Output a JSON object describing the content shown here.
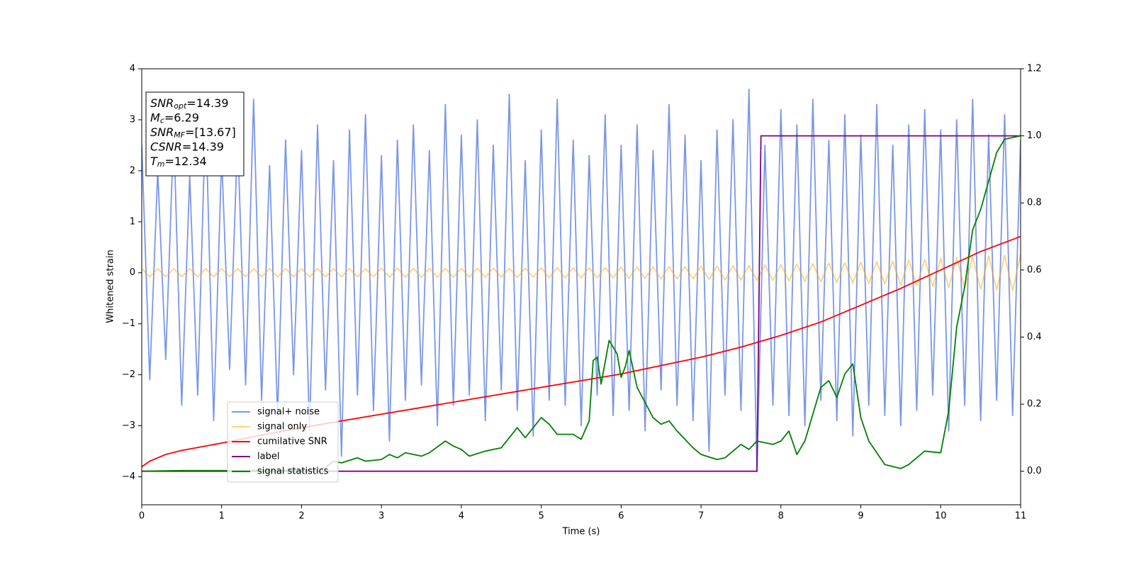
{
  "chart_data": {
    "type": "line",
    "xlabel": "Time (s)",
    "ylabel": "Whitened strain",
    "xlim": [
      0,
      11
    ],
    "ylim": [
      -4.55,
      4
    ],
    "y2lim": [
      -0.1,
      1.2
    ],
    "xticks": [
      0,
      1,
      2,
      3,
      4,
      5,
      6,
      7,
      8,
      9,
      10,
      11
    ],
    "yticks": [
      {
        "value": -4,
        "label": "−4"
      },
      {
        "value": -3,
        "label": "−3"
      },
      {
        "value": -2,
        "label": "−2"
      },
      {
        "value": -1,
        "label": "−1"
      },
      0,
      1,
      2,
      3,
      4
    ],
    "y2ticks": [
      {
        "value": 0,
        "label": "0.0"
      },
      {
        "value": 0.2,
        "label": "0.2"
      },
      {
        "value": 0.4,
        "label": "0.4"
      },
      {
        "value": 0.6,
        "label": "0.6"
      },
      {
        "value": 0.8,
        "label": "0.8"
      },
      {
        "value": 1.0,
        "label": "1.0"
      },
      {
        "value": 1.2,
        "label": "1.2"
      }
    ],
    "legend": "lower left",
    "annotations": [
      {
        "main": "SNR",
        "sub": "opt",
        "rest": "=14.39"
      },
      {
        "main": "M",
        "sub": "c",
        "rest": "=6.29"
      },
      {
        "main": "SNR",
        "sub": "MF",
        "rest": "=[13.67]"
      },
      {
        "main": "CSNR",
        "rest": "=14.39"
      },
      {
        "main": "T",
        "sub": "m",
        "rest": "=12.34"
      }
    ],
    "series": [
      {
        "name": "signal+ noise",
        "color": "#4169e1",
        "opacity": 0.7,
        "x": [
          0,
          0.1,
          0.2,
          0.3,
          0.4,
          0.5,
          0.6,
          0.7,
          0.8,
          0.9,
          1,
          1.1,
          1.2,
          1.3,
          1.4,
          1.5,
          1.6,
          1.7,
          1.8,
          1.9,
          2,
          2.1,
          2.2,
          2.3,
          2.4,
          2.5,
          2.6,
          2.7,
          2.8,
          2.9,
          3,
          3.1,
          3.2,
          3.3,
          3.4,
          3.5,
          3.6,
          3.7,
          3.8,
          3.9,
          4,
          4.1,
          4.2,
          4.3,
          4.4,
          4.5,
          4.6,
          4.7,
          4.8,
          4.9,
          5,
          5.1,
          5.2,
          5.3,
          5.4,
          5.5,
          5.6,
          5.7,
          5.8,
          5.9,
          6,
          6.1,
          6.2,
          6.3,
          6.4,
          6.5,
          6.6,
          6.7,
          6.8,
          6.9,
          7,
          7.1,
          7.2,
          7.3,
          7.4,
          7.5,
          7.6,
          7.7,
          7.8,
          7.9,
          8,
          8.1,
          8.2,
          8.3,
          8.4,
          8.5,
          8.6,
          8.7,
          8.8,
          8.9,
          9,
          9.1,
          9.2,
          9.3,
          9.4,
          9.5,
          9.6,
          9.7,
          9.8,
          9.9,
          10,
          10.1,
          10.2,
          10.3,
          10.4,
          10.5,
          10.6,
          10.7,
          10.8,
          10.9,
          11
        ],
        "values": [
          2.5,
          -2.1,
          2.0,
          -1.7,
          2.8,
          -2.6,
          1.9,
          -2.4,
          3.2,
          -2.9,
          2.3,
          -1.9,
          2.7,
          -2.2,
          3.4,
          -2.5,
          2.1,
          -2.8,
          2.6,
          -2.0,
          2.4,
          -3.1,
          2.9,
          -2.3,
          2.2,
          -3.6,
          2.8,
          -2.4,
          3.1,
          -2.7,
          2.3,
          -3.3,
          2.6,
          -2.5,
          2.9,
          -2.2,
          2.4,
          -3.0,
          3.3,
          -2.6,
          2.7,
          -2.4,
          3.0,
          -2.9,
          2.5,
          -2.3,
          3.5,
          -2.7,
          2.2,
          -3.2,
          2.8,
          -2.5,
          3.4,
          -2.6,
          2.6,
          -3.0,
          2.3,
          -2.4,
          3.1,
          -2.8,
          2.5,
          -2.7,
          2.9,
          -3.1,
          2.4,
          -2.3,
          3.3,
          -2.6,
          2.7,
          -2.9,
          2.2,
          -3.5,
          2.8,
          -2.4,
          3.0,
          -2.7,
          3.6,
          -3.9,
          2.5,
          -2.6,
          3.2,
          -2.8,
          2.9,
          -3.0,
          3.4,
          -2.5,
          2.6,
          -2.9,
          3.1,
          -3.2,
          2.7,
          -2.6,
          3.3,
          -2.8,
          2.5,
          -3.0,
          2.9,
          -2.7,
          3.2,
          -2.4,
          2.8,
          -3.1,
          3.0,
          -2.6,
          3.4,
          -2.9,
          2.7,
          -2.5,
          3.1,
          -2.8,
          2.6
        ]
      },
      {
        "name": "signal only",
        "color": "#ffa500",
        "opacity": 0.5,
        "x": [
          0,
          0.1,
          0.2,
          0.3,
          0.4,
          0.5,
          0.6,
          0.7,
          0.8,
          0.9,
          1,
          1.1,
          1.2,
          1.3,
          1.4,
          1.5,
          1.6,
          1.7,
          1.8,
          1.9,
          2,
          2.1,
          2.2,
          2.3,
          2.4,
          2.5,
          2.6,
          2.7,
          2.8,
          2.9,
          3,
          3.1,
          3.2,
          3.3,
          3.4,
          3.5,
          3.6,
          3.7,
          3.8,
          3.9,
          4,
          4.1,
          4.2,
          4.3,
          4.4,
          4.5,
          4.6,
          4.7,
          4.8,
          4.9,
          5,
          5.1,
          5.2,
          5.3,
          5.4,
          5.5,
          5.6,
          5.7,
          5.8,
          5.9,
          6,
          6.1,
          6.2,
          6.3,
          6.4,
          6.5,
          6.6,
          6.7,
          6.8,
          6.9,
          7,
          7.1,
          7.2,
          7.3,
          7.4,
          7.5,
          7.6,
          7.7,
          7.8,
          7.9,
          8,
          8.1,
          8.2,
          8.3,
          8.4,
          8.5,
          8.6,
          8.7,
          8.8,
          8.9,
          9,
          9.1,
          9.2,
          9.3,
          9.4,
          9.5,
          9.6,
          9.7,
          9.8,
          9.9,
          10,
          10.1,
          10.2,
          10.3,
          10.4,
          10.5,
          10.6,
          10.7,
          10.8,
          10.9,
          11
        ],
        "values": [
          0.08,
          -0.08,
          0.08,
          -0.08,
          0.08,
          -0.08,
          0.08,
          -0.08,
          0.08,
          -0.08,
          0.08,
          -0.08,
          0.08,
          -0.08,
          0.08,
          -0.08,
          0.08,
          -0.08,
          0.08,
          -0.08,
          0.08,
          -0.08,
          0.08,
          -0.08,
          0.08,
          -0.08,
          0.08,
          -0.08,
          0.08,
          -0.08,
          0.09,
          -0.09,
          0.09,
          -0.09,
          0.09,
          -0.09,
          0.09,
          -0.09,
          0.09,
          -0.09,
          0.09,
          -0.09,
          0.09,
          -0.09,
          0.09,
          -0.09,
          0.09,
          -0.09,
          0.09,
          -0.09,
          0.1,
          -0.1,
          0.1,
          -0.1,
          0.1,
          -0.1,
          0.1,
          -0.1,
          0.1,
          -0.1,
          0.11,
          -0.11,
          0.11,
          -0.11,
          0.11,
          -0.12,
          0.12,
          -0.12,
          0.12,
          -0.12,
          0.13,
          -0.13,
          0.13,
          -0.14,
          0.14,
          -0.14,
          0.14,
          -0.15,
          0.15,
          -0.15,
          0.16,
          -0.16,
          0.17,
          -0.17,
          0.18,
          -0.18,
          0.19,
          -0.19,
          0.2,
          -0.2,
          0.21,
          -0.21,
          0.22,
          -0.22,
          0.23,
          -0.24,
          0.25,
          -0.25,
          0.26,
          -0.27,
          0.28,
          -0.29,
          0.3,
          -0.3,
          0.31,
          -0.32,
          0.33,
          -0.34,
          0.34,
          -0.35,
          0.36
        ]
      },
      {
        "name": "cumilative SNR",
        "color": "#ff0000",
        "axis": "y2",
        "x": [
          0,
          0.1,
          0.3,
          0.5,
          1,
          1.5,
          2,
          2.5,
          3,
          3.5,
          4,
          4.5,
          5,
          5.5,
          6,
          6.5,
          7,
          7.5,
          8,
          8.5,
          9,
          9.5,
          10,
          10.5,
          11
        ],
        "values": [
          0.013,
          0.03,
          0.05,
          0.062,
          0.084,
          0.108,
          0.13,
          0.15,
          0.17,
          0.19,
          0.21,
          0.23,
          0.25,
          0.27,
          0.29,
          0.315,
          0.34,
          0.37,
          0.405,
          0.445,
          0.495,
          0.545,
          0.6,
          0.655,
          0.7
        ]
      },
      {
        "name": "label",
        "color": "#800080",
        "axis": "y2",
        "x": [
          0,
          7.7,
          7.75,
          11
        ],
        "values": [
          0,
          0,
          1,
          1
        ]
      },
      {
        "name": "signal statistics",
        "color": "#008000",
        "axis": "y2",
        "x": [
          0,
          0.5,
          1,
          1.5,
          2,
          2.3,
          2.4,
          2.5,
          2.7,
          2.8,
          3.0,
          3.1,
          3.2,
          3.3,
          3.5,
          3.6,
          3.8,
          3.9,
          4.0,
          4.1,
          4.3,
          4.5,
          4.6,
          4.7,
          4.8,
          5.0,
          5.1,
          5.2,
          5.4,
          5.5,
          5.6,
          5.65,
          5.7,
          5.75,
          5.85,
          5.95,
          6.0,
          6.05,
          6.1,
          6.2,
          6.4,
          6.5,
          6.6,
          6.7,
          6.9,
          7.0,
          7.2,
          7.3,
          7.5,
          7.6,
          7.7,
          7.9,
          8.0,
          8.1,
          8.2,
          8.3,
          8.5,
          8.6,
          8.7,
          8.8,
          8.9,
          9.0,
          9.1,
          9.3,
          9.5,
          9.6,
          9.8,
          10.0,
          10.1,
          10.2,
          10.3,
          10.4,
          10.5,
          10.7,
          10.8,
          11.0
        ],
        "values": [
          0.0,
          0.002,
          0.002,
          0.002,
          0.003,
          0.01,
          0.03,
          0.025,
          0.04,
          0.03,
          0.035,
          0.05,
          0.04,
          0.055,
          0.045,
          0.055,
          0.09,
          0.075,
          0.065,
          0.045,
          0.06,
          0.07,
          0.1,
          0.13,
          0.1,
          0.16,
          0.14,
          0.11,
          0.11,
          0.095,
          0.15,
          0.33,
          0.34,
          0.26,
          0.39,
          0.35,
          0.28,
          0.31,
          0.36,
          0.25,
          0.16,
          0.14,
          0.15,
          0.12,
          0.07,
          0.05,
          0.035,
          0.04,
          0.08,
          0.065,
          0.09,
          0.08,
          0.09,
          0.12,
          0.05,
          0.09,
          0.25,
          0.27,
          0.22,
          0.29,
          0.32,
          0.16,
          0.09,
          0.02,
          0.008,
          0.02,
          0.06,
          0.055,
          0.18,
          0.43,
          0.55,
          0.72,
          0.78,
          0.95,
          0.99,
          1.0
        ]
      }
    ]
  }
}
